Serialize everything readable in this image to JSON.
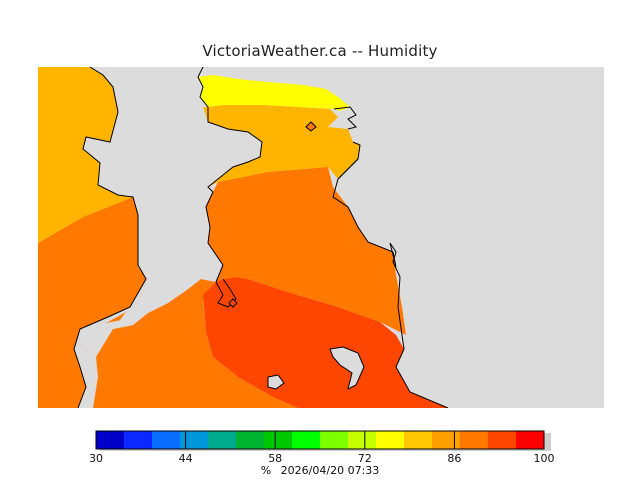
{
  "title": "VictoriaWeather.ca -- Humidity",
  "footer": {
    "unit": "%",
    "timestamp": "2026/04/20 07:33"
  },
  "colorbar": {
    "min": 30,
    "max": 100,
    "tick_labels": [
      "30",
      "44",
      "58",
      "72",
      "86",
      "100"
    ],
    "colors": [
      "#0a0080",
      "#0000c8",
      "#0a28ff",
      "#0a6eff",
      "#0096dc",
      "#00aa8c",
      "#00b432",
      "#00c800",
      "#00ff00",
      "#7eff00",
      "#c8ff00",
      "#ffff00",
      "#ffc800",
      "#ffa000",
      "#ff7800",
      "#ff4600",
      "#ff0000"
    ]
  },
  "map": {
    "land_fill": "#dcdcdc",
    "coast_color": "#000000",
    "humidity_zones": [
      {
        "humidity_class": "80-84",
        "color": "#ffff00"
      },
      {
        "humidity_class": "84-88",
        "color": "#ffb400"
      },
      {
        "humidity_class": "88-92",
        "color": "#ff7800"
      },
      {
        "humidity_class": "92-96",
        "color": "#ff4600"
      }
    ]
  }
}
